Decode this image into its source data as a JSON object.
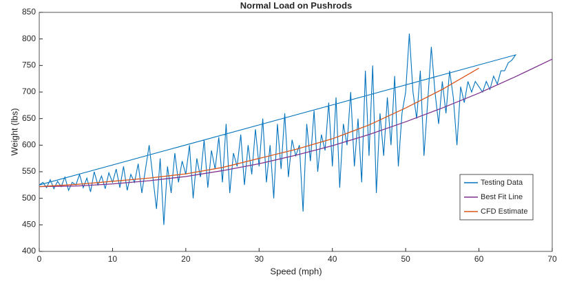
{
  "chart_data": {
    "type": "line",
    "title": "Normal Load on Pushrods",
    "xlabel": "Speed (mph)",
    "ylabel": "Weight (lbs)",
    "xlim": [
      0,
      70
    ],
    "ylim": [
      400,
      850
    ],
    "xticks": [
      0,
      10,
      20,
      30,
      40,
      50,
      60,
      70
    ],
    "yticks": [
      400,
      450,
      500,
      550,
      600,
      650,
      700,
      750,
      800,
      850
    ],
    "legend": "lower right",
    "series": [
      {
        "name": "Testing Data",
        "color": "#0072bd",
        "x": [
          0,
          0.5,
          1,
          1.5,
          2,
          2.5,
          3,
          3.5,
          4,
          4.5,
          5,
          5.5,
          6,
          6.5,
          7,
          7.5,
          8,
          8.5,
          9,
          9.5,
          10,
          10.5,
          11,
          11.5,
          12,
          12.5,
          13,
          13.5,
          14,
          14.5,
          15,
          15.5,
          16,
          16.5,
          17,
          17.5,
          18,
          18.5,
          19,
          19.5,
          20,
          20.5,
          21,
          21.5,
          22,
          22.5,
          23,
          23.5,
          24,
          24.5,
          25,
          25.5,
          26,
          26.5,
          27,
          27.5,
          28,
          28.5,
          29,
          29.5,
          30,
          30.5,
          31,
          31.5,
          32,
          32.5,
          33,
          33.5,
          34,
          34.5,
          35,
          35.5,
          36,
          36.5,
          37,
          37.5,
          38,
          38.5,
          39,
          39.5,
          40,
          40.5,
          41,
          41.5,
          42,
          42.5,
          43,
          43.5,
          44,
          44.5,
          45,
          45.5,
          46,
          46.5,
          47,
          47.5,
          48,
          48.5,
          49,
          49.5,
          50,
          50.5,
          51,
          51.5,
          52,
          52.5,
          53,
          53.5,
          54,
          54.5,
          55,
          55.5,
          56,
          56.5,
          57,
          57.5,
          58,
          58.5,
          59,
          59.5,
          60,
          60.5,
          61,
          61.5,
          62,
          62.5,
          63,
          63.5,
          64,
          64.5,
          65,
          0
        ],
        "values": [
          525,
          530,
          520,
          535,
          518,
          532,
          522,
          540,
          515,
          530,
          525,
          545,
          520,
          538,
          512,
          550,
          525,
          542,
          518,
          548,
          530,
          555,
          520,
          560,
          515,
          545,
          530,
          565,
          510,
          555,
          600,
          540,
          480,
          575,
          450,
          560,
          510,
          585,
          530,
          570,
          545,
          600,
          500,
          575,
          540,
          610,
          520,
          590,
          555,
          615,
          530,
          640,
          510,
          585,
          560,
          620,
          525,
          600,
          545,
          630,
          560,
          650,
          530,
          600,
          500,
          640,
          555,
          660,
          540,
          610,
          580,
          600,
          475,
          640,
          570,
          665,
          550,
          620,
          590,
          680,
          560,
          690,
          520,
          640,
          600,
          700,
          560,
          650,
          530,
          740,
          580,
          750,
          510,
          660,
          580,
          690,
          600,
          730,
          560,
          660,
          700,
          810,
          700,
          650,
          740,
          580,
          680,
          785,
          700,
          640,
          720,
          660,
          740,
          690,
          600,
          710,
          680,
          720,
          700,
          720,
          710,
          700,
          720,
          705,
          730,
          715,
          740,
          740,
          755,
          760,
          770,
          525
        ]
      },
      {
        "name": "Best Fit Line",
        "color": "#7e2f8e",
        "x": [
          0,
          5,
          10,
          15,
          20,
          25,
          30,
          35,
          40,
          45,
          50,
          55,
          60,
          65,
          70
        ],
        "values": [
          522,
          523,
          527,
          533,
          541,
          552,
          565,
          581,
          599,
          620,
          644,
          670,
          698,
          729,
          762
        ]
      },
      {
        "name": "CFD Estimate",
        "color": "#d95319",
        "x": [
          0,
          5,
          10,
          15,
          20,
          25,
          30,
          35,
          40,
          45,
          50,
          55,
          60
        ],
        "values": [
          522,
          526,
          532,
          538,
          546,
          558,
          575,
          592,
          612,
          638,
          670,
          705,
          745
        ]
      }
    ]
  }
}
